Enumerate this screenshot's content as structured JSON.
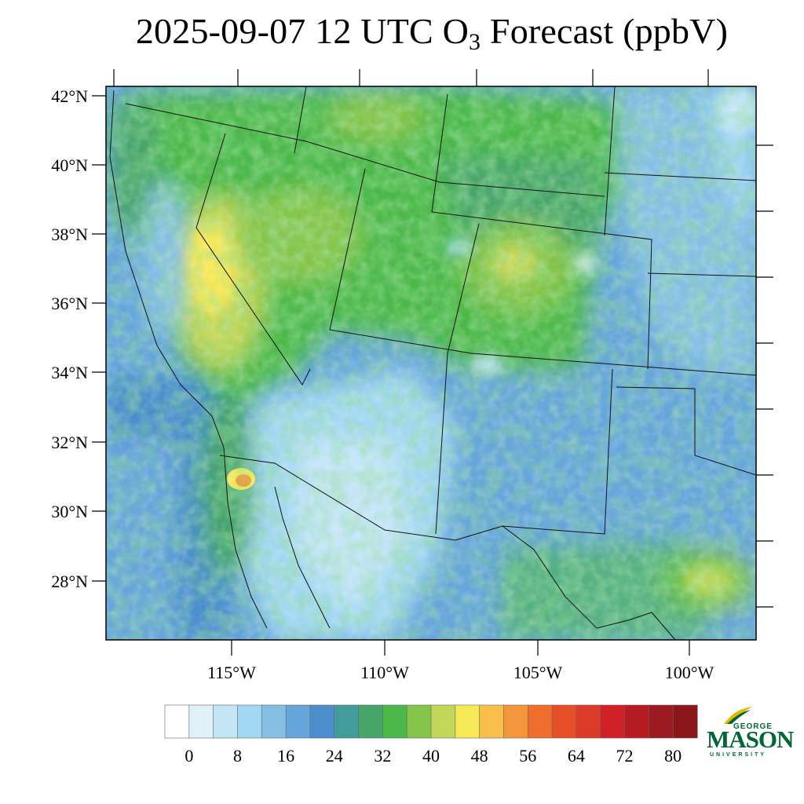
{
  "title": {
    "prefix": "2025-09-07 12 UTC O",
    "subscript": "3",
    "suffix": " Forecast (ppbV)"
  },
  "map": {
    "lat_labels": [
      "42°N",
      "40°N",
      "38°N",
      "36°N",
      "34°N",
      "32°N",
      "30°N",
      "28°N"
    ],
    "lon_labels": [
      "115°W",
      "110°W",
      "105°W",
      "100°W"
    ]
  },
  "colorbar": {
    "colors": [
      "#ffffff",
      "#e1f1fa",
      "#c3e5f6",
      "#a3d8f2",
      "#85c0e4",
      "#66a6da",
      "#4a8ecb",
      "#439c9c",
      "#47a56a",
      "#4cb849",
      "#86c54b",
      "#c2d758",
      "#f7e856",
      "#f8c04b",
      "#f4973a",
      "#ee6e2c",
      "#e74f28",
      "#dd3b29",
      "#d02128",
      "#b51d23",
      "#9b1b20",
      "#8a1719"
    ],
    "labels": [
      "0",
      "8",
      "16",
      "24",
      "32",
      "40",
      "48",
      "56",
      "64",
      "72",
      "80"
    ]
  },
  "logo": {
    "top": "GEORGE",
    "main": "MASON",
    "bottom": "UNIVERSITY",
    "color": "#006633"
  }
}
